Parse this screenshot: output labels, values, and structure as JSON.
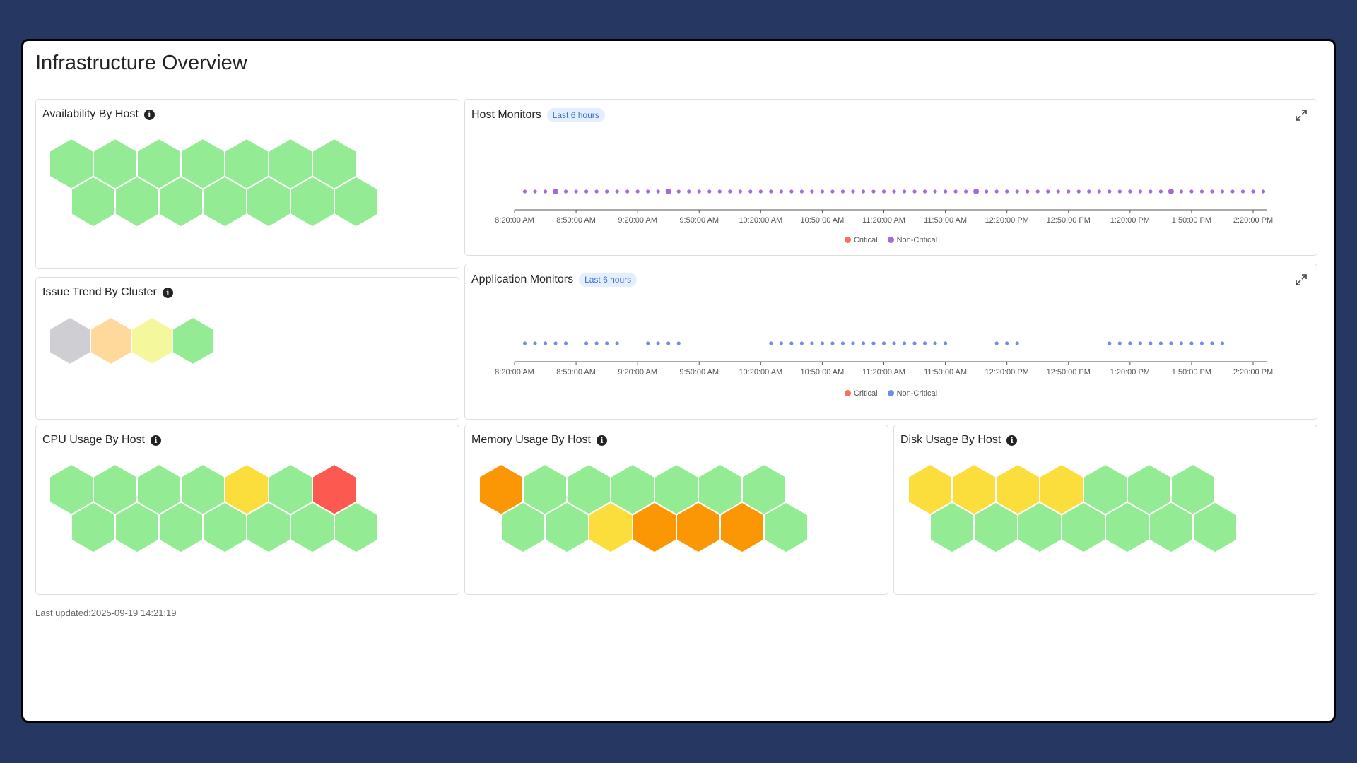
{
  "page": {
    "title": "Infrastructure Overview"
  },
  "cards": {
    "availability": {
      "title": "Availability By Host",
      "hexes": [
        "#93ec93",
        "#93ec93",
        "#93ec93",
        "#93ec93",
        "#93ec93",
        "#93ec93",
        "#93ec93",
        "#93ec93",
        "#93ec93",
        "#93ec93",
        "#93ec93",
        "#93ec93",
        "#93ec93",
        "#93ec93"
      ]
    },
    "issue_trend": {
      "title": "Issue Trend By Cluster",
      "hexes": [
        "#cfcfd3",
        "#ffd89b",
        "#f4f79b",
        "#93ec93"
      ]
    },
    "cpu": {
      "title": "CPU Usage By Host",
      "hexes": [
        "#93ec93",
        "#93ec93",
        "#93ec93",
        "#93ec93",
        "#fbdd3c",
        "#93ec93",
        "#fc5a50",
        "#93ec93",
        "#93ec93",
        "#93ec93",
        "#93ec93",
        "#93ec93",
        "#93ec93",
        "#93ec93"
      ]
    },
    "memory": {
      "title": "Memory Usage By Host",
      "hexes": [
        "#fb9604",
        "#93ec93",
        "#93ec93",
        "#93ec93",
        "#93ec93",
        "#93ec93",
        "#93ec93",
        "#93ec93",
        "#93ec93",
        "#fbdd3c",
        "#fb9604",
        "#fb9604",
        "#fb9604",
        "#93ec93"
      ]
    },
    "disk": {
      "title": "Disk Usage By Host",
      "hexes": [
        "#fbdd3c",
        "#fbdd3c",
        "#fbdd3c",
        "#fbdd3c",
        "#93ec93",
        "#93ec93",
        "#93ec93",
        "#93ec93",
        "#93ec93",
        "#93ec93",
        "#93ec93",
        "#93ec93",
        "#93ec93",
        "#93ec93"
      ]
    },
    "host_monitors": {
      "title": "Host Monitors",
      "badge": "Last 6 hours"
    },
    "app_monitors": {
      "title": "Application Monitors",
      "badge": "Last 6 hours"
    }
  },
  "legend": {
    "critical": "Critical",
    "non_critical": "Non-Critical"
  },
  "colors": {
    "critical": "#f4725e",
    "host_non_critical": "#a76ad4",
    "app_non_critical": "#6f8cec"
  },
  "chart_data": [
    {
      "type": "scatter",
      "title": "Host Monitors",
      "x_range": [
        "8:20:00 AM",
        "2:20:00 PM"
      ],
      "tick_labels": [
        "8:20:00 AM",
        "8:50:00 AM",
        "9:20:00 AM",
        "9:50:00 AM",
        "10:20:00 AM",
        "10:50:00 AM",
        "11:20:00 AM",
        "11:50:00 AM",
        "12:20:00 PM",
        "12:50:00 PM",
        "1:20:00 PM",
        "1:50:00 PM",
        "2:20:00 PM"
      ],
      "legend": [
        "Critical",
        "Non-Critical"
      ],
      "series": [
        {
          "name": "Critical",
          "x": []
        },
        {
          "name": "Non-Critical",
          "x": [
            "8:25:00 AM",
            "8:30:00 AM",
            "8:35:00 AM",
            "8:40:00 AM",
            "8:45:00 AM",
            "8:50:00 AM",
            "8:55:00 AM",
            "9:00:00 AM",
            "9:05:00 AM",
            "9:10:00 AM",
            "9:15:00 AM",
            "9:20:00 AM",
            "9:25:00 AM",
            "9:30:00 AM",
            "9:35:00 AM",
            "9:40:00 AM",
            "9:45:00 AM",
            "9:50:00 AM",
            "9:55:00 AM",
            "10:00:00 AM",
            "10:05:00 AM",
            "10:10:00 AM",
            "10:15:00 AM",
            "10:20:00 AM",
            "10:25:00 AM",
            "10:30:00 AM",
            "10:35:00 AM",
            "10:40:00 AM",
            "10:45:00 AM",
            "10:50:00 AM",
            "10:55:00 AM",
            "11:00:00 AM",
            "11:05:00 AM",
            "11:10:00 AM",
            "11:15:00 AM",
            "11:20:00 AM",
            "11:25:00 AM",
            "11:30:00 AM",
            "11:35:00 AM",
            "11:40:00 AM",
            "11:45:00 AM",
            "11:50:00 AM",
            "11:55:00 AM",
            "12:00:00 PM",
            "12:05:00 PM",
            "12:10:00 PM",
            "12:15:00 PM",
            "12:20:00 PM",
            "12:25:00 PM",
            "12:30:00 PM",
            "12:35:00 PM",
            "12:40:00 PM",
            "12:45:00 PM",
            "12:50:00 PM",
            "12:55:00 PM",
            "1:00:00 PM",
            "1:05:00 PM",
            "1:10:00 PM",
            "1:15:00 PM",
            "1:20:00 PM",
            "1:25:00 PM",
            "1:30:00 PM",
            "1:35:00 PM",
            "1:40:00 PM",
            "1:45:00 PM",
            "1:50:00 PM",
            "1:55:00 PM",
            "2:00:00 PM",
            "2:05:00 PM",
            "2:10:00 PM",
            "2:15:00 PM",
            "2:20:00 PM",
            "2:25:00 PM"
          ],
          "emphasized": [
            "8:40:00 AM",
            "9:35:00 AM",
            "12:05:00 PM",
            "1:40:00 PM"
          ]
        }
      ]
    },
    {
      "type": "scatter",
      "title": "Application Monitors",
      "x_range": [
        "8:20:00 AM",
        "2:20:00 PM"
      ],
      "tick_labels": [
        "8:20:00 AM",
        "8:50:00 AM",
        "9:20:00 AM",
        "9:50:00 AM",
        "10:20:00 AM",
        "10:50:00 AM",
        "11:20:00 AM",
        "11:50:00 AM",
        "12:20:00 PM",
        "12:50:00 PM",
        "1:20:00 PM",
        "1:50:00 PM",
        "2:20:00 PM"
      ],
      "legend": [
        "Critical",
        "Non-Critical"
      ],
      "series": [
        {
          "name": "Critical",
          "x": []
        },
        {
          "name": "Non-Critical",
          "x": [
            "8:25:00 AM",
            "8:30:00 AM",
            "8:35:00 AM",
            "8:40:00 AM",
            "8:45:00 AM",
            "8:55:00 AM",
            "9:00:00 AM",
            "9:05:00 AM",
            "9:10:00 AM",
            "9:25:00 AM",
            "9:30:00 AM",
            "9:35:00 AM",
            "9:40:00 AM",
            "10:25:00 AM",
            "10:30:00 AM",
            "10:35:00 AM",
            "10:40:00 AM",
            "10:45:00 AM",
            "10:50:00 AM",
            "10:55:00 AM",
            "11:00:00 AM",
            "11:05:00 AM",
            "11:10:00 AM",
            "11:15:00 AM",
            "11:20:00 AM",
            "11:25:00 AM",
            "11:30:00 AM",
            "11:35:00 AM",
            "11:40:00 AM",
            "11:45:00 AM",
            "11:50:00 AM",
            "12:15:00 PM",
            "12:20:00 PM",
            "12:25:00 PM",
            "1:10:00 PM",
            "1:15:00 PM",
            "1:20:00 PM",
            "1:25:00 PM",
            "1:30:00 PM",
            "1:35:00 PM",
            "1:40:00 PM",
            "1:45:00 PM",
            "1:50:00 PM",
            "1:55:00 PM",
            "2:00:00 PM",
            "2:05:00 PM"
          ]
        }
      ]
    }
  ],
  "footer": {
    "last_updated": "Last updated:2025-09-19 14:21:19"
  }
}
